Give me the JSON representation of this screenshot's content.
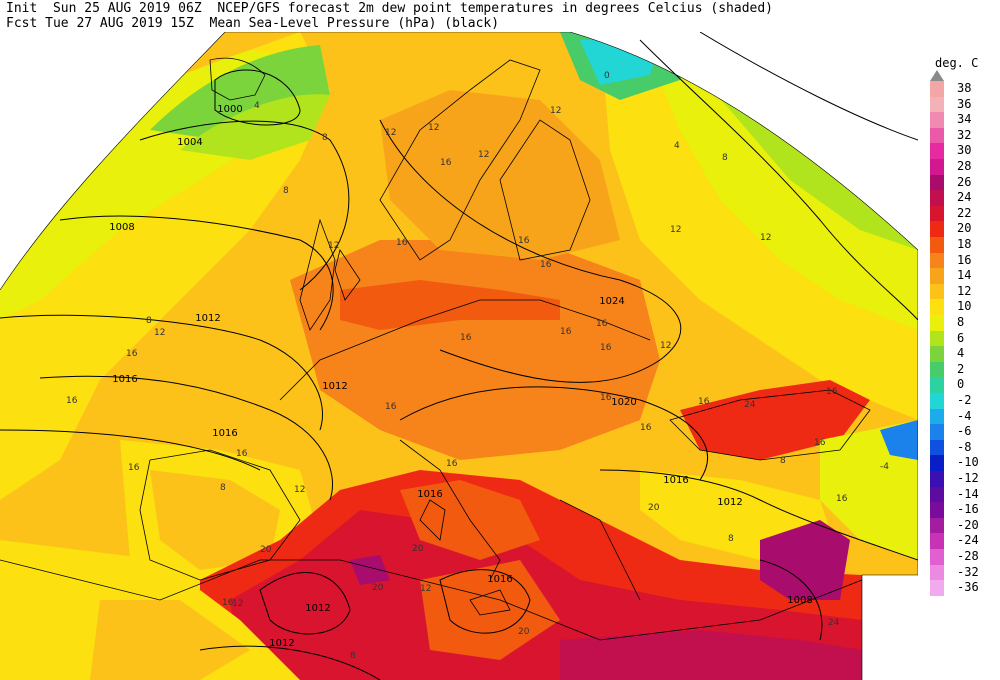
{
  "header": {
    "line1": "Init  Sun 25 AUG 2019 06Z  NCEP/GFS forecast 2m dew point temperatures in degrees Celcius (shaded)",
    "line2": "Fcst Tue 27 AUG 2019 15Z  Mean Sea-Level Pressure (hPa) (black)"
  },
  "legend": {
    "title": "deg. C",
    "entries": [
      {
        "label": "38",
        "color": "#f2a6a6"
      },
      {
        "label": "36",
        "color": "#f2b2b8"
      },
      {
        "label": "34",
        "color": "#f08ab0"
      },
      {
        "label": "32",
        "color": "#ea5aa8"
      },
      {
        "label": "30",
        "color": "#e62aa0"
      },
      {
        "label": "28",
        "color": "#d21890"
      },
      {
        "label": "26",
        "color": "#a80c6c"
      },
      {
        "label": "24",
        "color": "#c2104e"
      },
      {
        "label": "22",
        "color": "#d8142e"
      },
      {
        "label": "20",
        "color": "#ee2a14"
      },
      {
        "label": "18",
        "color": "#f25a10"
      },
      {
        "label": "16",
        "color": "#f6841a"
      },
      {
        "label": "14",
        "color": "#f8a41a"
      },
      {
        "label": "12",
        "color": "#fcc21a"
      },
      {
        "label": "10",
        "color": "#fce010"
      },
      {
        "label": "8",
        "color": "#e8f00c"
      },
      {
        "label": "6",
        "color": "#b2e41e"
      },
      {
        "label": "4",
        "color": "#7cd43c"
      },
      {
        "label": "2",
        "color": "#48cc6a"
      },
      {
        "label": "0",
        "color": "#2cd2a2"
      },
      {
        "label": "-2",
        "color": "#22d6d6"
      },
      {
        "label": "-4",
        "color": "#1cacec"
      },
      {
        "label": "-6",
        "color": "#1a82ea"
      },
      {
        "label": "-8",
        "color": "#1050de"
      },
      {
        "label": "-10",
        "color": "#0a1ec8"
      },
      {
        "label": "-12",
        "color": "#3a10b2"
      },
      {
        "label": "-14",
        "color": "#5e0ca0"
      },
      {
        "label": "-16",
        "color": "#7a0c9c"
      },
      {
        "label": "-20",
        "color": "#a41ca0"
      },
      {
        "label": "-24",
        "color": "#c832b4"
      },
      {
        "label": "-28",
        "color": "#e060d0"
      },
      {
        "label": "-32",
        "color": "#ec8ae2"
      },
      {
        "label": "-36",
        "color": "#f2aaee"
      }
    ]
  },
  "map": {
    "isobar_labels": [
      "1000",
      "1004",
      "1008",
      "1012",
      "1016",
      "1012",
      "1016",
      "1024",
      "1020",
      "1016",
      "1016",
      "1012",
      "1016",
      "1012",
      "1012",
      "1008"
    ],
    "dewpoint_labels": [
      "4",
      "8",
      "12",
      "12",
      "12",
      "16",
      "12",
      "16",
      "12",
      "16",
      "16",
      "16",
      "12",
      "12",
      "16",
      "12",
      "16",
      "16",
      "12",
      "16",
      "16",
      "8",
      "8",
      "16",
      "12",
      "16",
      "16",
      "8",
      "4",
      "20",
      "20",
      "16",
      "8",
      "-4",
      "24",
      "16",
      "0",
      "8",
      "16",
      "20",
      "16",
      "16",
      "24",
      "16",
      "20",
      "20",
      "12",
      "8",
      "8",
      "12",
      "16",
      "16"
    ]
  }
}
